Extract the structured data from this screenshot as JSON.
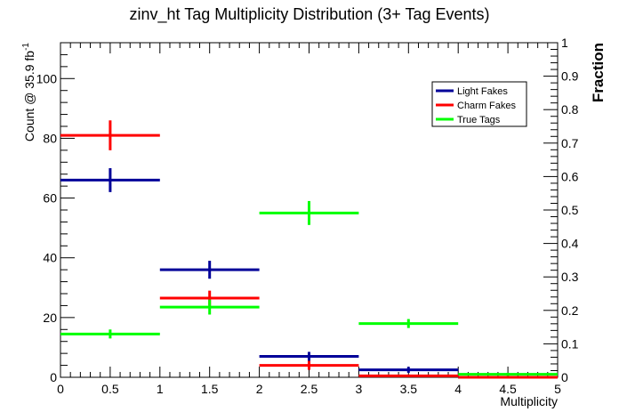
{
  "chart_data": {
    "type": "scatter",
    "title": "zinv_ht Tag Multiplicity Distribution (3+ Tag Events)",
    "xlabel": "Multiplicity",
    "ylabel": "Count @ 35.9 fb",
    "ylabel_superscript": "-1",
    "y2label": "Fraction",
    "xlim": [
      0,
      5
    ],
    "ylim": [
      0,
      112
    ],
    "y2lim": [
      0,
      1
    ],
    "x_ticks": [
      "0",
      "0.5",
      "1",
      "1.5",
      "2",
      "2.5",
      "3",
      "3.5",
      "4",
      "4.5",
      "5"
    ],
    "y_ticks": [
      "0",
      "20",
      "40",
      "60",
      "80",
      "100"
    ],
    "y2_ticks": [
      "0",
      "0.1",
      "0.2",
      "0.3",
      "0.4",
      "0.5",
      "0.6",
      "0.7",
      "0.8",
      "0.9",
      "1"
    ],
    "legend_position": "top-right",
    "series": [
      {
        "name": "Light Fakes",
        "color": "#000099",
        "points": [
          {
            "x": 0.5,
            "xlo": 0,
            "xhi": 1,
            "y": 66,
            "err": 4
          },
          {
            "x": 1.5,
            "xlo": 1,
            "xhi": 2,
            "y": 36,
            "err": 3
          },
          {
            "x": 2.5,
            "xlo": 2,
            "xhi": 3,
            "y": 7,
            "err": 1.5
          },
          {
            "x": 3.5,
            "xlo": 3,
            "xhi": 4,
            "y": 2.5,
            "err": 1
          },
          {
            "x": 4.5,
            "xlo": 4,
            "xhi": 5,
            "y": 0,
            "err": 0
          }
        ]
      },
      {
        "name": "Charm Fakes",
        "color": "#ff0000",
        "points": [
          {
            "x": 0.5,
            "xlo": 0,
            "xhi": 1,
            "y": 81,
            "err": 5
          },
          {
            "x": 1.5,
            "xlo": 1,
            "xhi": 2,
            "y": 26.5,
            "err": 2.5
          },
          {
            "x": 2.5,
            "xlo": 2,
            "xhi": 3,
            "y": 4,
            "err": 1.5
          },
          {
            "x": 3.5,
            "xlo": 3,
            "xhi": 4,
            "y": 0.5,
            "err": 0.3
          },
          {
            "x": 4.5,
            "xlo": 4,
            "xhi": 5,
            "y": 0,
            "err": 0
          }
        ]
      },
      {
        "name": "True Tags",
        "color": "#00ff00",
        "points": [
          {
            "x": 0.5,
            "xlo": 0,
            "xhi": 1,
            "y": 14.5,
            "err": 1.5
          },
          {
            "x": 1.5,
            "xlo": 1,
            "xhi": 2,
            "y": 23.5,
            "err": 2.5
          },
          {
            "x": 2.5,
            "xlo": 2,
            "xhi": 3,
            "y": 55,
            "err": 4
          },
          {
            "x": 3.5,
            "xlo": 3,
            "xhi": 4,
            "y": 18,
            "err": 1.5
          },
          {
            "x": 4.5,
            "xlo": 4,
            "xhi": 5,
            "y": 1,
            "err": 0.5
          }
        ]
      }
    ]
  }
}
